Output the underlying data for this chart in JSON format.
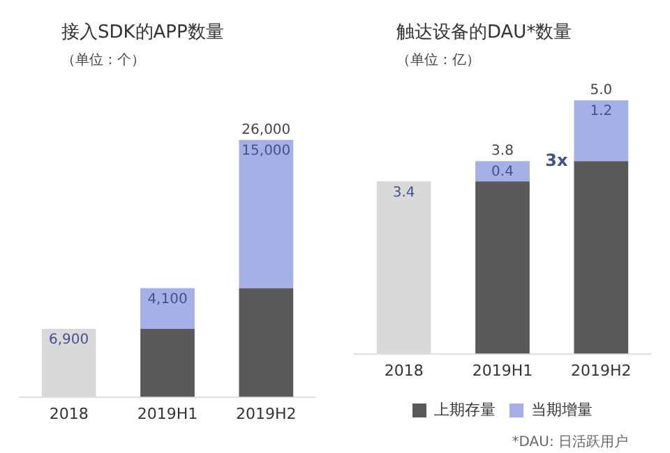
{
  "chart_data": [
    {
      "type": "bar",
      "title": "接入SDK的APP数量",
      "subtitle": "（单位：个）",
      "categories": [
        "2018",
        "2019H1",
        "2019H2"
      ],
      "stacked": true,
      "tick_labels": "x",
      "grid": false,
      "legend": false,
      "series": [
        {
          "color": "#595959",
          "values": [
            null,
            6900,
            11000
          ]
        },
        {
          "colors": [
            "#d9d9d9",
            "#a4b0e6",
            "#a4b0e6"
          ],
          "values": [
            6900,
            4100,
            15000
          ],
          "value_labels": [
            "6,900",
            "4,100",
            "15,000"
          ]
        }
      ],
      "totals": [
        null,
        null,
        "26,000"
      ]
    },
    {
      "type": "bar",
      "title": "触达设备的DAU*数量",
      "subtitle": "（单位：亿）",
      "categories": [
        "2018",
        "2019H1",
        "2019H2"
      ],
      "stacked": true,
      "tick_labels": "x",
      "grid": false,
      "legend": "bottom",
      "series": [
        {
          "name": "上期存量",
          "color": "#595959",
          "values": [
            null,
            3.4,
            3.8
          ]
        },
        {
          "name": "当期增量",
          "color": "#a4b0e6",
          "colors": [
            "#d9d9d9",
            "#a4b0e6",
            "#a4b0e6"
          ],
          "values": [
            3.4,
            0.4,
            1.2
          ],
          "value_labels": [
            "3.4",
            "0.4",
            "1.2"
          ]
        }
      ],
      "totals": [
        null,
        "3.8",
        "5.0"
      ],
      "annotations": [
        {
          "text": "3x",
          "x": "2019H2",
          "y": 3.8
        },
        "*DAU: 日活跃用户"
      ]
    }
  ]
}
